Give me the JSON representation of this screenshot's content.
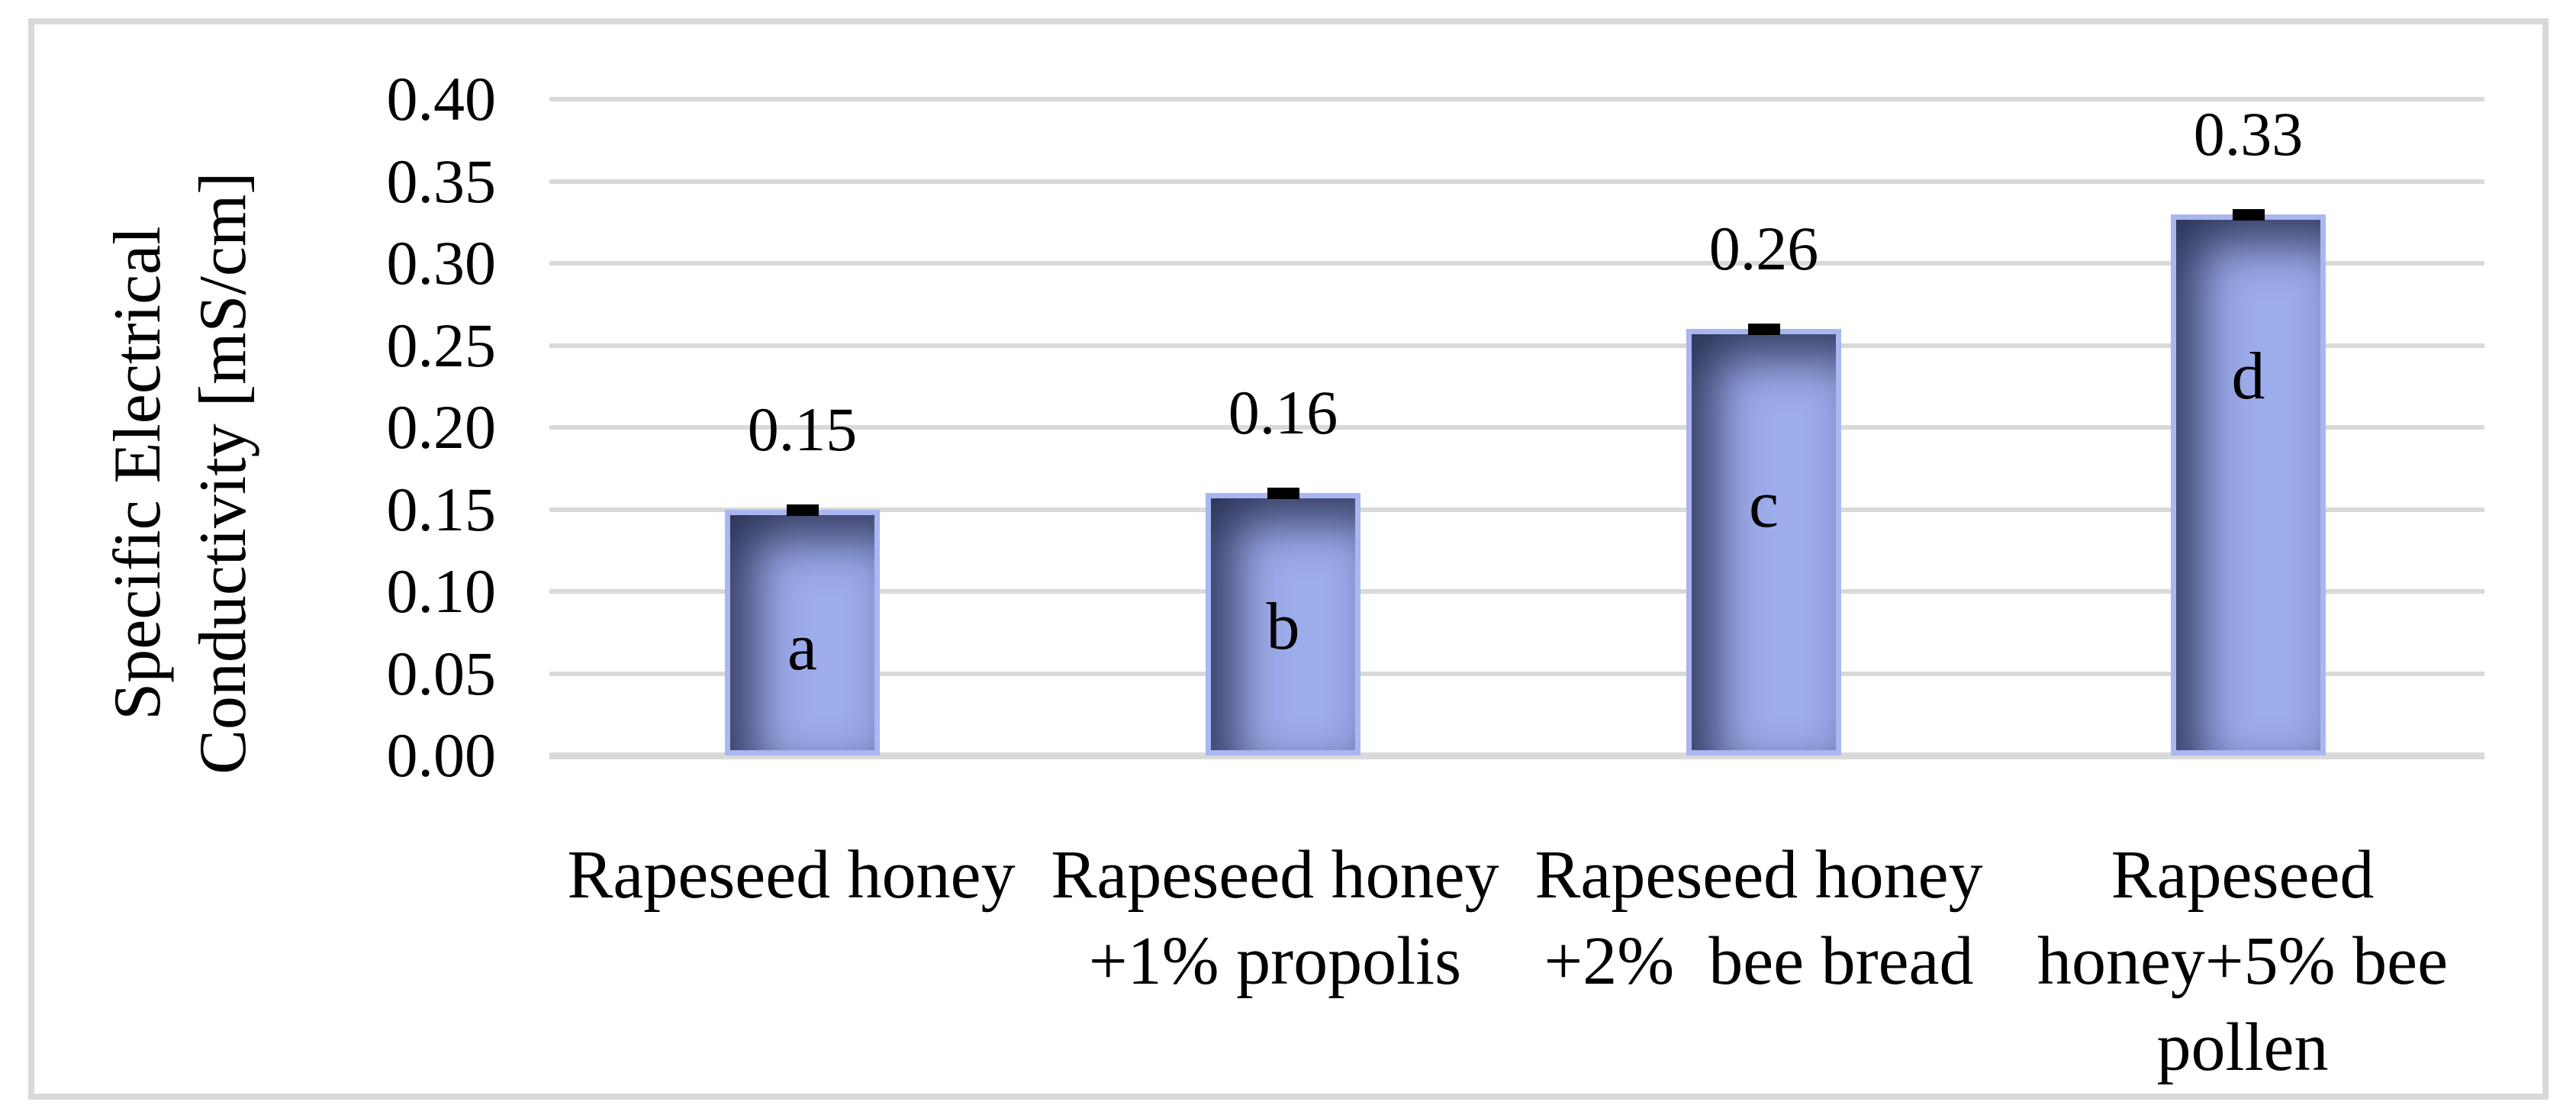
{
  "figure": {
    "background": "#ffffff",
    "frame_border_color": "#d9d9d9"
  },
  "chart_data": {
    "type": "bar",
    "title": "",
    "xlabel": "",
    "ylabel": "Specific Electrical Conductivity [mS/cm]",
    "ylabel_lines": [
      "Specific Electrical",
      "Conductivity [mS/cm]"
    ],
    "categories": [
      "Rapeseed honey",
      "Rapeseed honey +1% propolis",
      "Rapeseed honey +2%  bee bread",
      "Rapeseed honey+5% bee pollen"
    ],
    "category_lines": [
      [
        "Rapeseed honey"
      ],
      [
        "Rapeseed honey",
        "+1% propolis"
      ],
      [
        "Rapeseed honey",
        "+2%  bee bread"
      ],
      [
        "Rapeseed",
        "honey+5% bee",
        "pollen"
      ]
    ],
    "values": [
      0.15,
      0.16,
      0.26,
      0.33
    ],
    "data_labels": [
      "0.15",
      "0.16",
      "0.26",
      "0.33"
    ],
    "bar_letters": [
      "a",
      "b",
      "c",
      "d"
    ],
    "y_ticks": [
      "0.40",
      "0.35",
      "0.30",
      "0.25",
      "0.20",
      "0.15",
      "0.10",
      "0.05",
      "0.00"
    ],
    "ylim": [
      0,
      0.4
    ],
    "grid": "horizontal",
    "legend": "none",
    "error_bars": "small black caps at bar tops",
    "bar_fill_color": "#9daceb",
    "bar_border_color": "#a9b6f0",
    "bar_inner_shadow_color": "#2e3a5c",
    "error_bar_color": "#000000",
    "gridline_color": "#d9d9d9",
    "text_color": "#000000",
    "letter_pct_from_bar_top": [
      54,
      49,
      40,
      29
    ]
  }
}
